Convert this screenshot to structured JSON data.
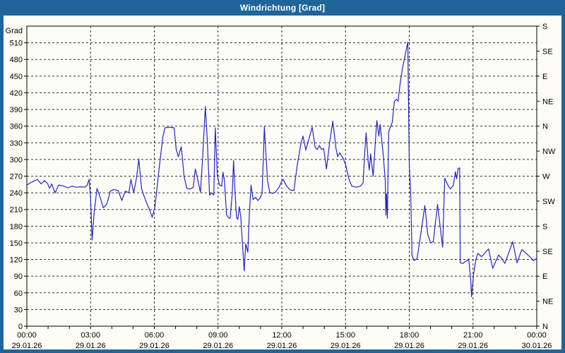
{
  "window": {
    "title": "Windrichtung [Grad]"
  },
  "colors": {
    "frame": "#20659a",
    "title_text": "#ffffff",
    "background": "#fdfdf5",
    "plot_background": "#fdfdf8",
    "axis": "#000000",
    "grid": "#2a2a2a",
    "line": "#2323c8"
  },
  "chart_data": {
    "type": "line",
    "title": "Windrichtung [Grad]",
    "ylabel": "Grad",
    "legend": null,
    "grid": {
      "horizontal_dashed": true,
      "vertical_dashed": true,
      "minor_x_ticks_hours": 1
    },
    "y_axis": {
      "min": 0,
      "max": 540,
      "tick_step": 30,
      "unit_label": "Grad",
      "tick_labels": [
        "0",
        "30",
        "60",
        "90",
        "120",
        "150",
        "180",
        "210",
        "240",
        "270",
        "300",
        "330",
        "360",
        "390",
        "420",
        "450",
        "480",
        "510"
      ]
    },
    "y_axis_right": {
      "tick_step": 45,
      "labels": [
        {
          "value": 540,
          "label": "S"
        },
        {
          "value": 495,
          "label": "SE"
        },
        {
          "value": 450,
          "label": "E"
        },
        {
          "value": 405,
          "label": "NE"
        },
        {
          "value": 360,
          "label": "N"
        },
        {
          "value": 315,
          "label": "NW"
        },
        {
          "value": 270,
          "label": "W"
        },
        {
          "value": 225,
          "label": "SW"
        },
        {
          "value": 180,
          "label": "S"
        },
        {
          "value": 135,
          "label": "SE"
        },
        {
          "value": 90,
          "label": "E"
        },
        {
          "value": 45,
          "label": "NE"
        },
        {
          "value": 0,
          "label": "N"
        }
      ]
    },
    "x_axis": {
      "min_hours": 0,
      "max_hours": 24,
      "major_tick_hours": 3,
      "minor_tick_hours": 1,
      "ticks": [
        {
          "hours": 0,
          "time": "00:00",
          "date": "29.01.26"
        },
        {
          "hours": 3,
          "time": "03:00",
          "date": "29.01.26"
        },
        {
          "hours": 6,
          "time": "06:00",
          "date": "29.01.26"
        },
        {
          "hours": 9,
          "time": "09:00",
          "date": "29.01.26"
        },
        {
          "hours": 12,
          "time": "12:00",
          "date": "29.01.26"
        },
        {
          "hours": 15,
          "time": "15:00",
          "date": "29.01.26"
        },
        {
          "hours": 18,
          "time": "18:00",
          "date": "29.01.26"
        },
        {
          "hours": 21,
          "time": "21:00",
          "date": "29.01.26"
        },
        {
          "hours": 24,
          "time": "00:00",
          "date": "30.01.26"
        }
      ]
    },
    "series": [
      {
        "name": "Windrichtung",
        "color": "#2323c8",
        "points": [
          [
            0.0,
            254
          ],
          [
            0.17,
            258
          ],
          [
            0.33,
            261
          ],
          [
            0.5,
            264
          ],
          [
            0.67,
            256
          ],
          [
            0.83,
            262
          ],
          [
            0.97,
            257
          ],
          [
            1.07,
            248
          ],
          [
            1.17,
            256
          ],
          [
            1.33,
            240
          ],
          [
            1.5,
            254
          ],
          [
            1.73,
            252
          ],
          [
            1.93,
            249
          ],
          [
            2.13,
            252
          ],
          [
            2.33,
            250
          ],
          [
            2.53,
            251
          ],
          [
            2.73,
            250
          ],
          [
            2.83,
            253
          ],
          [
            2.93,
            264
          ],
          [
            3.0,
            230
          ],
          [
            3.07,
            155
          ],
          [
            3.17,
            205
          ],
          [
            3.3,
            248
          ],
          [
            3.45,
            232
          ],
          [
            3.6,
            213
          ],
          [
            3.77,
            220
          ],
          [
            3.93,
            243
          ],
          [
            4.1,
            246
          ],
          [
            4.3,
            244
          ],
          [
            4.47,
            226
          ],
          [
            4.63,
            243
          ],
          [
            4.8,
            240
          ],
          [
            4.9,
            264
          ],
          [
            5.03,
            240
          ],
          [
            5.17,
            268
          ],
          [
            5.27,
            301
          ],
          [
            5.4,
            247
          ],
          [
            5.6,
            225
          ],
          [
            5.77,
            210
          ],
          [
            5.9,
            196
          ],
          [
            6.03,
            215
          ],
          [
            6.23,
            285
          ],
          [
            6.4,
            340
          ],
          [
            6.5,
            357
          ],
          [
            6.7,
            358
          ],
          [
            6.93,
            357
          ],
          [
            7.03,
            318
          ],
          [
            7.13,
            305
          ],
          [
            7.27,
            323
          ],
          [
            7.4,
            270
          ],
          [
            7.53,
            248
          ],
          [
            7.7,
            247
          ],
          [
            7.83,
            250
          ],
          [
            7.93,
            283
          ],
          [
            8.03,
            266
          ],
          [
            8.17,
            241
          ],
          [
            8.27,
            300
          ],
          [
            8.4,
            395
          ],
          [
            8.5,
            330
          ],
          [
            8.6,
            236
          ],
          [
            8.7,
            240
          ],
          [
            8.8,
            236
          ],
          [
            8.87,
            357
          ],
          [
            8.97,
            270
          ],
          [
            9.07,
            254
          ],
          [
            9.17,
            252
          ],
          [
            9.23,
            277
          ],
          [
            9.3,
            262
          ],
          [
            9.4,
            200
          ],
          [
            9.5,
            195
          ],
          [
            9.57,
            194
          ],
          [
            9.67,
            240
          ],
          [
            9.73,
            298
          ],
          [
            9.8,
            240
          ],
          [
            9.87,
            196
          ],
          [
            9.93,
            192
          ],
          [
            10.0,
            215
          ],
          [
            10.07,
            197
          ],
          [
            10.13,
            160
          ],
          [
            10.23,
            99
          ],
          [
            10.3,
            148
          ],
          [
            10.4,
            133
          ],
          [
            10.47,
            200
          ],
          [
            10.55,
            254
          ],
          [
            10.65,
            228
          ],
          [
            10.77,
            232
          ],
          [
            10.87,
            226
          ],
          [
            10.97,
            230
          ],
          [
            11.07,
            238
          ],
          [
            11.13,
            300
          ],
          [
            11.18,
            359
          ],
          [
            11.27,
            300
          ],
          [
            11.33,
            262
          ],
          [
            11.43,
            241
          ],
          [
            11.57,
            239
          ],
          [
            11.7,
            241
          ],
          [
            11.87,
            250
          ],
          [
            12.0,
            261
          ],
          [
            12.07,
            264
          ],
          [
            12.23,
            252
          ],
          [
            12.4,
            245
          ],
          [
            12.57,
            244
          ],
          [
            12.73,
            291
          ],
          [
            12.9,
            329
          ],
          [
            13.0,
            342
          ],
          [
            13.13,
            317
          ],
          [
            13.43,
            358
          ],
          [
            13.57,
            322
          ],
          [
            13.67,
            318
          ],
          [
            13.77,
            325
          ],
          [
            13.87,
            318
          ],
          [
            13.97,
            320
          ],
          [
            14.1,
            283
          ],
          [
            14.25,
            330
          ],
          [
            14.4,
            369
          ],
          [
            14.55,
            320
          ],
          [
            14.63,
            305
          ],
          [
            14.73,
            312
          ],
          [
            14.9,
            301
          ],
          [
            15.0,
            291
          ],
          [
            15.17,
            263
          ],
          [
            15.3,
            252
          ],
          [
            15.5,
            250
          ],
          [
            15.7,
            252
          ],
          [
            15.83,
            258
          ],
          [
            15.9,
            310
          ],
          [
            15.97,
            348
          ],
          [
            16.07,
            295
          ],
          [
            16.12,
            281
          ],
          [
            16.18,
            310
          ],
          [
            16.3,
            270
          ],
          [
            16.4,
            330
          ],
          [
            16.47,
            370
          ],
          [
            16.57,
            342
          ],
          [
            16.63,
            363
          ],
          [
            16.77,
            310
          ],
          [
            16.87,
            262
          ],
          [
            16.9,
            200
          ],
          [
            16.93,
            238
          ],
          [
            16.97,
            194
          ],
          [
            17.03,
            350
          ],
          [
            17.1,
            357
          ],
          [
            17.2,
            367
          ],
          [
            17.3,
            405
          ],
          [
            17.4,
            408
          ],
          [
            17.47,
            405
          ],
          [
            17.57,
            437
          ],
          [
            17.67,
            462
          ],
          [
            17.8,
            487
          ],
          [
            17.93,
            511
          ],
          [
            18.0,
            293
          ],
          [
            18.07,
            234
          ],
          [
            18.13,
            127
          ],
          [
            18.23,
            118
          ],
          [
            18.37,
            122
          ],
          [
            18.5,
            155
          ],
          [
            18.63,
            190
          ],
          [
            18.73,
            217
          ],
          [
            18.87,
            165
          ],
          [
            19.0,
            150
          ],
          [
            19.13,
            152
          ],
          [
            19.33,
            219
          ],
          [
            19.57,
            142
          ],
          [
            19.67,
            266
          ],
          [
            19.8,
            255
          ],
          [
            19.93,
            247
          ],
          [
            20.07,
            253
          ],
          [
            20.17,
            278
          ],
          [
            20.23,
            265
          ],
          [
            20.3,
            284
          ],
          [
            20.37,
            285
          ],
          [
            20.4,
            114
          ],
          [
            20.53,
            113
          ],
          [
            20.67,
            117
          ],
          [
            20.8,
            121
          ],
          [
            20.9,
            80
          ],
          [
            20.93,
            53
          ],
          [
            21.03,
            95
          ],
          [
            21.13,
            120
          ],
          [
            21.23,
            131
          ],
          [
            21.4,
            125
          ],
          [
            21.73,
            139
          ],
          [
            21.93,
            104
          ],
          [
            22.2,
            128
          ],
          [
            22.33,
            123
          ],
          [
            22.5,
            113
          ],
          [
            22.87,
            152
          ],
          [
            23.07,
            114
          ],
          [
            23.3,
            138
          ],
          [
            23.5,
            131
          ],
          [
            23.73,
            123
          ],
          [
            23.83,
            118
          ],
          [
            24.0,
            122
          ]
        ]
      }
    ]
  }
}
